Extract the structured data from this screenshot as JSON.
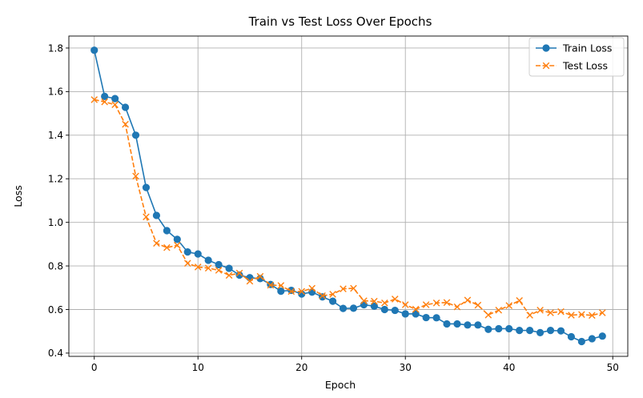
{
  "chart_data": {
    "type": "line",
    "title": "Train vs Test Loss Over Epochs",
    "xlabel": "Epoch",
    "ylabel": "Loss",
    "xlim": [
      -2.45,
      51.45
    ],
    "ylim": [
      0.385,
      1.855
    ],
    "xticks": [
      0,
      10,
      20,
      30,
      40,
      50
    ],
    "yticks": [
      0.4,
      0.6,
      0.8,
      1.0,
      1.2,
      1.4,
      1.6,
      1.8
    ],
    "grid": true,
    "legend_position": "top-right",
    "x": [
      0,
      1,
      2,
      3,
      4,
      5,
      6,
      7,
      8,
      9,
      10,
      11,
      12,
      13,
      14,
      15,
      16,
      17,
      18,
      19,
      20,
      21,
      22,
      23,
      24,
      25,
      26,
      27,
      28,
      29,
      30,
      31,
      32,
      33,
      34,
      35,
      36,
      37,
      38,
      39,
      40,
      41,
      42,
      43,
      44,
      45,
      46,
      47,
      48,
      49
    ],
    "series": [
      {
        "name": "Train Loss",
        "color": "#1f77b4",
        "marker": "circle",
        "linestyle": "solid",
        "values": [
          1.79,
          1.578,
          1.568,
          1.528,
          1.4,
          1.16,
          1.032,
          0.962,
          0.922,
          0.864,
          0.855,
          0.826,
          0.806,
          0.789,
          0.758,
          0.746,
          0.742,
          0.715,
          0.684,
          0.688,
          0.671,
          0.68,
          0.658,
          0.638,
          0.605,
          0.606,
          0.622,
          0.615,
          0.6,
          0.596,
          0.58,
          0.58,
          0.563,
          0.562,
          0.534,
          0.534,
          0.529,
          0.529,
          0.509,
          0.512,
          0.512,
          0.504,
          0.504,
          0.494,
          0.504,
          0.502,
          0.475,
          0.453,
          0.466,
          0.478
        ]
      },
      {
        "name": "Test Loss",
        "color": "#ff7f0e",
        "marker": "x",
        "linestyle": "dashed",
        "values": [
          1.563,
          1.553,
          1.54,
          1.45,
          1.212,
          1.025,
          0.904,
          0.884,
          0.895,
          0.812,
          0.795,
          0.79,
          0.78,
          0.757,
          0.767,
          0.73,
          0.752,
          0.712,
          0.71,
          0.683,
          0.683,
          0.697,
          0.663,
          0.67,
          0.695,
          0.697,
          0.64,
          0.638,
          0.63,
          0.648,
          0.622,
          0.601,
          0.622,
          0.63,
          0.632,
          0.612,
          0.643,
          0.62,
          0.575,
          0.597,
          0.618,
          0.641,
          0.574,
          0.597,
          0.585,
          0.59,
          0.574,
          0.577,
          0.573,
          0.585
        ]
      }
    ]
  }
}
